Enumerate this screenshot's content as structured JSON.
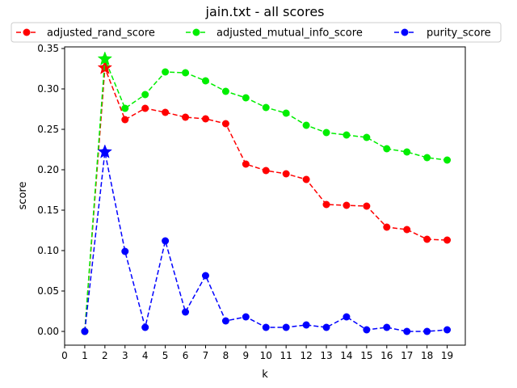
{
  "chart_data": {
    "type": "line",
    "title": "jain.txt - all scores",
    "xlabel": "k",
    "ylabel": "score",
    "xlim": [
      0,
      19.9
    ],
    "ylim": [
      -0.017,
      0.352
    ],
    "x_ticks": [
      0,
      1,
      2,
      3,
      4,
      5,
      6,
      7,
      8,
      9,
      10,
      11,
      12,
      13,
      14,
      15,
      16,
      17,
      18,
      19
    ],
    "y_ticks": [
      0.0,
      0.05,
      0.1,
      0.15,
      0.2,
      0.25,
      0.3,
      0.35
    ],
    "y_tick_labels": [
      "0.00",
      "0.05",
      "0.10",
      "0.15",
      "0.20",
      "0.25",
      "0.30",
      "0.35"
    ],
    "grid": false,
    "legend_position": "top",
    "x": [
      1,
      2,
      3,
      4,
      5,
      6,
      7,
      8,
      9,
      10,
      11,
      12,
      13,
      14,
      15,
      16,
      17,
      18,
      19
    ],
    "series": [
      {
        "name": "adjusted_rand_score",
        "color": "#ff0000",
        "values": [
          0.0,
          0.326,
          0.262,
          0.276,
          0.271,
          0.265,
          0.263,
          0.257,
          0.207,
          0.199,
          0.195,
          0.188,
          0.157,
          0.156,
          0.155,
          0.129,
          0.126,
          0.114,
          0.113
        ],
        "best": {
          "x": 2,
          "y": 0.326
        }
      },
      {
        "name": "adjusted_mutual_info_score",
        "color": "#00ee00",
        "values": [
          0.0,
          0.337,
          0.276,
          0.293,
          0.321,
          0.32,
          0.31,
          0.297,
          0.289,
          0.277,
          0.27,
          0.255,
          0.246,
          0.243,
          0.24,
          0.226,
          0.222,
          0.215,
          0.212
        ],
        "best": {
          "x": 2,
          "y": 0.337
        }
      },
      {
        "name": "purity_score",
        "color": "#0000ff",
        "values": [
          0.0,
          0.222,
          0.099,
          0.005,
          0.112,
          0.024,
          0.069,
          0.013,
          0.018,
          0.005,
          0.005,
          0.008,
          0.005,
          0.018,
          0.002,
          0.005,
          0.0,
          0.0,
          0.002
        ],
        "best": {
          "x": 2,
          "y": 0.222
        }
      }
    ]
  }
}
